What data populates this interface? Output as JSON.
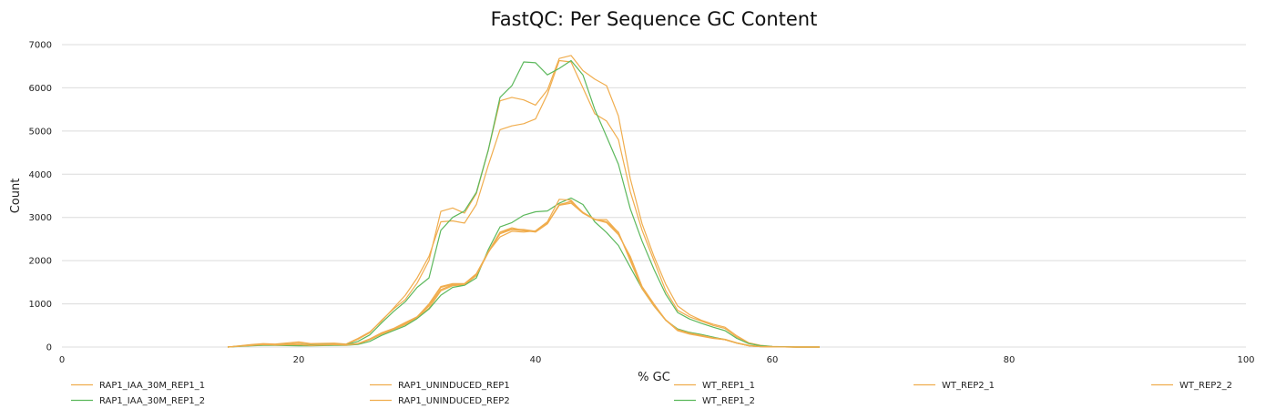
{
  "chart_data": {
    "type": "line",
    "title": "FastQC: Per Sequence GC Content",
    "xlabel": "% GC",
    "ylabel": "Count",
    "xlim": [
      0,
      100
    ],
    "ylim": [
      0,
      7000
    ],
    "x_ticks": [
      0,
      20,
      40,
      60,
      80,
      100
    ],
    "y_ticks": [
      0,
      1000,
      2000,
      3000,
      4000,
      5000,
      6000,
      7000
    ],
    "grid": "horizontal",
    "legend_position": "bottom",
    "colors": {
      "warn": "#f0ad4e",
      "pass": "#5cb85c"
    },
    "series": [
      {
        "name": "RAP1_IAA_30M_REP1_1",
        "color": "#f0ad4e",
        "x": [
          14,
          16,
          17,
          18,
          20,
          21,
          23,
          24,
          25,
          26,
          27,
          28,
          29,
          30,
          31,
          32,
          33,
          34,
          35,
          36,
          37,
          38,
          39,
          40,
          41,
          42,
          43,
          44,
          45,
          46,
          47,
          48,
          49,
          50,
          51,
          52,
          53,
          54,
          55,
          56,
          57,
          58,
          59,
          60,
          62,
          64
        ],
        "y": [
          0,
          40,
          50,
          60,
          50,
          40,
          60,
          50,
          80,
          170,
          300,
          400,
          520,
          680,
          900,
          1300,
          1420,
          1440,
          1650,
          2200,
          2650,
          2730,
          2720,
          2680,
          2870,
          3280,
          3330,
          3100,
          2950,
          2880,
          2600,
          2100,
          1400,
          1000,
          620,
          400,
          320,
          280,
          220,
          180,
          100,
          40,
          15,
          5,
          0,
          0
        ]
      },
      {
        "name": "RAP1_IAA_30M_REP1_2",
        "color": "#5cb85c",
        "x": [
          14,
          16,
          17,
          18,
          20,
          21,
          23,
          24,
          25,
          26,
          27,
          28,
          29,
          30,
          31,
          32,
          33,
          34,
          35,
          36,
          37,
          38,
          39,
          40,
          41,
          42,
          43,
          44,
          45,
          46,
          47,
          48,
          49,
          50,
          51,
          52,
          53,
          54,
          55,
          56,
          57,
          58,
          59,
          60,
          62,
          64
        ],
        "y": [
          0,
          30,
          40,
          40,
          30,
          30,
          40,
          40,
          60,
          130,
          270,
          380,
          490,
          660,
          880,
          1200,
          1380,
          1430,
          1600,
          2250,
          2780,
          2880,
          3050,
          3130,
          3150,
          3330,
          3450,
          3300,
          2900,
          2650,
          2350,
          1850,
          1350,
          950,
          620,
          420,
          340,
          290,
          230,
          170,
          90,
          30,
          10,
          5,
          0,
          0
        ]
      },
      {
        "name": "RAP1_UNINDUCED_REP1",
        "color": "#f0ad4e",
        "x": [
          14,
          16,
          17,
          18,
          20,
          21,
          23,
          24,
          25,
          26,
          27,
          28,
          29,
          30,
          31,
          32,
          33,
          34,
          35,
          36,
          37,
          38,
          39,
          40,
          41,
          42,
          43,
          44,
          45,
          46,
          47,
          48,
          49,
          50,
          51,
          52,
          53,
          54,
          55,
          56,
          57,
          58,
          59,
          60,
          62,
          64
        ],
        "y": [
          0,
          60,
          80,
          70,
          120,
          80,
          90,
          70,
          200,
          350,
          600,
          900,
          1200,
          1600,
          2100,
          2900,
          2920,
          2870,
          3300,
          4200,
          5030,
          5120,
          5170,
          5280,
          5850,
          6630,
          6600,
          6000,
          5400,
          5230,
          4800,
          3600,
          2700,
          2000,
          1300,
          850,
          700,
          600,
          500,
          430,
          230,
          90,
          30,
          10,
          0,
          0
        ]
      },
      {
        "name": "RAP1_UNINDUCED_REP2",
        "color": "#f0ad4e",
        "x": [
          14,
          16,
          17,
          18,
          20,
          21,
          23,
          24,
          25,
          26,
          27,
          28,
          29,
          30,
          31,
          32,
          33,
          34,
          35,
          36,
          37,
          38,
          39,
          40,
          41,
          42,
          43,
          44,
          45,
          46,
          47,
          48,
          49,
          50,
          51,
          52,
          53,
          54,
          55,
          56,
          57,
          58,
          59,
          60,
          62,
          64
        ],
        "y": [
          0,
          40,
          60,
          50,
          60,
          40,
          60,
          50,
          80,
          190,
          330,
          430,
          570,
          700,
          1000,
          1400,
          1470,
          1470,
          1700,
          2200,
          2550,
          2680,
          2660,
          2690,
          2900,
          3420,
          3400,
          3100,
          2950,
          2950,
          2650,
          2000,
          1350,
          950,
          620,
          380,
          300,
          250,
          200,
          170,
          90,
          30,
          10,
          5,
          0,
          0
        ]
      },
      {
        "name": "WT_REP1_1",
        "color": "#f0ad4e",
        "x": [
          14,
          16,
          17,
          18,
          20,
          21,
          23,
          24,
          25,
          26,
          27,
          28,
          29,
          30,
          31,
          32,
          33,
          34,
          35,
          36,
          37,
          38,
          39,
          40,
          41,
          42,
          43,
          44,
          45,
          46,
          47,
          48,
          49,
          50,
          51,
          52,
          53,
          54,
          55,
          56,
          57,
          58,
          59,
          60,
          62,
          64
        ],
        "y": [
          0,
          50,
          70,
          60,
          90,
          70,
          80,
          60,
          180,
          330,
          620,
          880,
          1100,
          1480,
          2000,
          3140,
          3220,
          3100,
          3550,
          4550,
          5700,
          5780,
          5720,
          5600,
          5950,
          6680,
          6750,
          6400,
          6200,
          6050,
          5350,
          3900,
          2850,
          2100,
          1450,
          950,
          750,
          620,
          530,
          460,
          260,
          100,
          40,
          15,
          0,
          0
        ]
      },
      {
        "name": "WT_REP1_2",
        "color": "#5cb85c",
        "x": [
          14,
          16,
          17,
          18,
          20,
          21,
          23,
          24,
          25,
          26,
          27,
          28,
          29,
          30,
          31,
          32,
          33,
          34,
          35,
          36,
          37,
          38,
          39,
          40,
          41,
          42,
          43,
          44,
          45,
          46,
          47,
          48,
          49,
          50,
          51,
          52,
          53,
          54,
          55,
          56,
          57,
          58,
          59,
          60,
          62,
          64
        ],
        "y": [
          0,
          40,
          50,
          50,
          60,
          50,
          60,
          50,
          130,
          280,
          560,
          820,
          1050,
          1380,
          1600,
          2700,
          3000,
          3150,
          3580,
          4550,
          5780,
          6050,
          6600,
          6580,
          6300,
          6450,
          6630,
          6300,
          5500,
          4870,
          4230,
          3200,
          2450,
          1800,
          1220,
          800,
          650,
          550,
          460,
          380,
          200,
          80,
          30,
          10,
          0,
          0
        ]
      },
      {
        "name": "WT_REP2_1",
        "color": "#f0ad4e",
        "x": [
          14,
          16,
          17,
          18,
          20,
          21,
          23,
          24,
          25,
          26,
          27,
          28,
          29,
          30,
          31,
          32,
          33,
          34,
          35,
          36,
          37,
          38,
          39,
          40,
          41,
          42,
          43,
          44,
          45,
          46,
          47,
          48,
          49,
          50,
          51,
          52,
          53,
          54,
          55,
          56,
          57,
          58,
          59,
          60,
          62,
          64
        ],
        "y": [
          0,
          40,
          60,
          50,
          60,
          40,
          60,
          50,
          80,
          180,
          320,
          420,
          560,
          700,
          980,
          1380,
          1450,
          1460,
          1680,
          2200,
          2660,
          2760,
          2700,
          2660,
          2850,
          3280,
          3380,
          3120,
          2960,
          2900,
          2660,
          2000,
          1360,
          960,
          620,
          400,
          320,
          270,
          210,
          170,
          90,
          30,
          10,
          5,
          0,
          0
        ]
      },
      {
        "name": "WT_REP2_2",
        "color": "#f0ad4e",
        "x": [
          14,
          16,
          17,
          18,
          20,
          21,
          23,
          24,
          25,
          26,
          27,
          28,
          29,
          30,
          31,
          32,
          33,
          34,
          35,
          36,
          37,
          38,
          39,
          40,
          41,
          42,
          43,
          44,
          45,
          46,
          47,
          48,
          49,
          50,
          51,
          52,
          53,
          54,
          55,
          56,
          57,
          58,
          59,
          60,
          62,
          64
        ],
        "y": [
          0,
          40,
          55,
          50,
          55,
          40,
          55,
          45,
          75,
          170,
          310,
          410,
          540,
          690,
          950,
          1330,
          1440,
          1450,
          1660,
          2180,
          2620,
          2720,
          2690,
          2670,
          2860,
          3300,
          3360,
          3110,
          2950,
          2890,
          2640,
          2050,
          1380,
          980,
          630,
          400,
          320,
          270,
          210,
          170,
          90,
          30,
          10,
          5,
          0,
          0
        ]
      }
    ]
  }
}
